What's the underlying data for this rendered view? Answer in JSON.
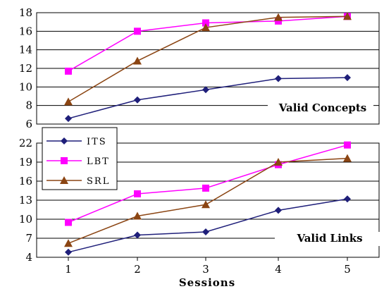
{
  "chart_data": [
    {
      "type": "line",
      "title": "Valid Concepts",
      "x": [
        1,
        2,
        3,
        4,
        5
      ],
      "ylim": [
        6,
        18
      ],
      "yticks": [
        6,
        8,
        10,
        12,
        14,
        16,
        18
      ],
      "grid": true,
      "series": [
        {
          "name": "ITS",
          "color": "#1f1f7a",
          "marker": "diamond",
          "values": [
            6.6,
            8.6,
            9.7,
            10.9,
            11.0
          ]
        },
        {
          "name": "LBT",
          "color": "#ff00ff",
          "marker": "square",
          "values": [
            11.7,
            16.0,
            16.9,
            17.1,
            17.6
          ]
        },
        {
          "name": "SRL",
          "color": "#8b4513",
          "marker": "triangle",
          "values": [
            8.4,
            12.8,
            16.4,
            17.5,
            17.6
          ]
        }
      ]
    },
    {
      "type": "line",
      "title": "Valid Links",
      "x": [
        1,
        2,
        3,
        4,
        5
      ],
      "xlabel": "Sessions",
      "xticks": [
        "1",
        "2",
        "3",
        "4",
        "5"
      ],
      "ylim": [
        4,
        22
      ],
      "yticks": [
        4,
        7,
        10,
        13,
        16,
        19,
        22
      ],
      "grid": true,
      "legend": "top-left",
      "series": [
        {
          "name": "ITS",
          "color": "#1f1f7a",
          "marker": "diamond",
          "values": [
            4.8,
            7.5,
            8.0,
            11.4,
            13.2
          ]
        },
        {
          "name": "LBT",
          "color": "#ff00ff",
          "marker": "square",
          "values": [
            9.5,
            14.0,
            14.9,
            18.6,
            21.7
          ]
        },
        {
          "name": "SRL",
          "color": "#8b4513",
          "marker": "triangle",
          "values": [
            6.2,
            10.5,
            12.3,
            19.0,
            19.6
          ]
        }
      ]
    }
  ]
}
